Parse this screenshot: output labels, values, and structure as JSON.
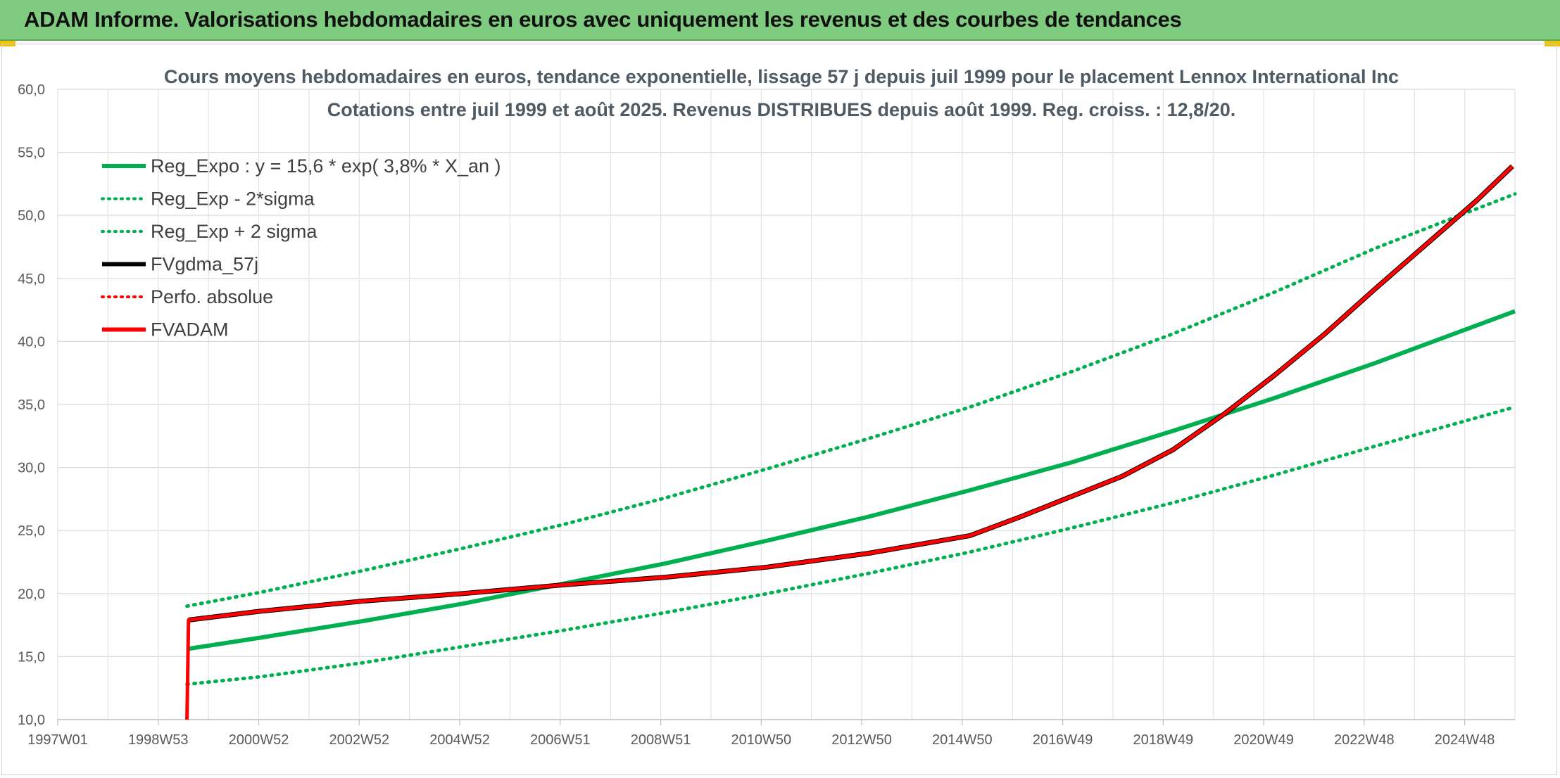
{
  "banner": {
    "title": "ADAM Informe. Valorisations hebdomadaires en euros avec uniquement les revenus et des courbes de tendances"
  },
  "chart_data": {
    "type": "line",
    "title": "Cours moyens hebdomadaires en euros, tendance exponentielle, lissage 57 j depuis juil 1999 pour le placement Lennox International Inc",
    "subtitle": "Cotations entre juil 1999 et août 2025. Revenus DISTRIBUES depuis août 1999. Reg. croiss. : 12,8/20.",
    "xlabel": "",
    "ylabel": "",
    "x_ticks": [
      "1997W01",
      "1998W53",
      "2000W52",
      "2002W52",
      "2004W52",
      "2006W51",
      "2008W51",
      "2010W50",
      "2012W50",
      "2014W50",
      "2016W49",
      "2018W49",
      "2020W49",
      "2022W48",
      "2024W48"
    ],
    "y_ticks": [
      "10,0",
      "15,0",
      "20,0",
      "25,0",
      "30,0",
      "35,0",
      "40,0",
      "45,0",
      "50,0",
      "55,0",
      "60,0"
    ],
    "xlim": [
      1997.0,
      2025.75
    ],
    "ylim": [
      10,
      60
    ],
    "grid": true,
    "legend_position": "top-left",
    "series": [
      {
        "name": "Reg_Expo : y = 15,6 * exp( 3,8% *  X_an )",
        "color": "#00b050",
        "style": "solid",
        "x": [
          1999.55,
          2001,
          2003,
          2005,
          2007,
          2009,
          2011,
          2013,
          2015,
          2017,
          2019,
          2021,
          2023,
          2025.75
        ],
        "y": [
          15.6,
          16.5,
          17.8,
          19.2,
          20.8,
          22.4,
          24.2,
          26.1,
          28.2,
          30.4,
          32.9,
          35.5,
          38.3,
          42.4
        ]
      },
      {
        "name": "Reg_Exp - 2*sigma",
        "color": "#00b050",
        "style": "dotted",
        "x": [
          1999.55,
          2001,
          2003,
          2005,
          2007,
          2009,
          2011,
          2013,
          2015,
          2017,
          2019,
          2021,
          2023,
          2025.75
        ],
        "y": [
          12.8,
          13.4,
          14.5,
          15.8,
          17.1,
          18.5,
          20.0,
          21.6,
          23.3,
          25.2,
          27.2,
          29.4,
          31.7,
          34.8
        ]
      },
      {
        "name": "Reg_Exp + 2 sigma",
        "color": "#00b050",
        "style": "dotted",
        "x": [
          1999.55,
          2001,
          2003,
          2005,
          2007,
          2009,
          2011,
          2013,
          2015,
          2017,
          2019,
          2021,
          2023,
          2025.75
        ],
        "y": [
          19.0,
          20.1,
          21.8,
          23.6,
          25.5,
          27.6,
          29.9,
          32.3,
          34.8,
          37.6,
          40.6,
          43.9,
          47.4,
          51.7
        ]
      },
      {
        "name": "FVgdma_57j",
        "color": "#000000",
        "style": "solid",
        "x": [
          1999.58,
          2001,
          2003,
          2005,
          2007,
          2009,
          2011,
          2013,
          2015,
          2016,
          2017,
          2018,
          2019,
          2020,
          2021,
          2022,
          2023,
          2024,
          2025,
          2025.7
        ],
        "y": [
          17.9,
          18.6,
          19.4,
          20.0,
          20.7,
          21.3,
          22.1,
          23.2,
          24.6,
          26.1,
          27.7,
          29.3,
          31.4,
          34.2,
          37.3,
          40.6,
          44.2,
          47.7,
          51.2,
          53.9
        ]
      },
      {
        "name": "Perfo. absolue",
        "color": "#ff0000",
        "style": "dotted",
        "x": [],
        "y": []
      },
      {
        "name": "FVADAM",
        "color": "#ff0000",
        "style": "solid",
        "x": [
          1999.55,
          1999.58,
          2001,
          2003,
          2005,
          2007,
          2009,
          2011,
          2013,
          2015,
          2016,
          2017,
          2018,
          2019,
          2020,
          2021,
          2022,
          2023,
          2024,
          2025,
          2025.7
        ],
        "y": [
          10.0,
          17.9,
          18.6,
          19.4,
          20.0,
          20.7,
          21.3,
          22.1,
          23.2,
          24.6,
          26.1,
          27.7,
          29.3,
          31.4,
          34.2,
          37.3,
          40.6,
          44.2,
          47.7,
          51.2,
          53.9
        ]
      }
    ]
  }
}
